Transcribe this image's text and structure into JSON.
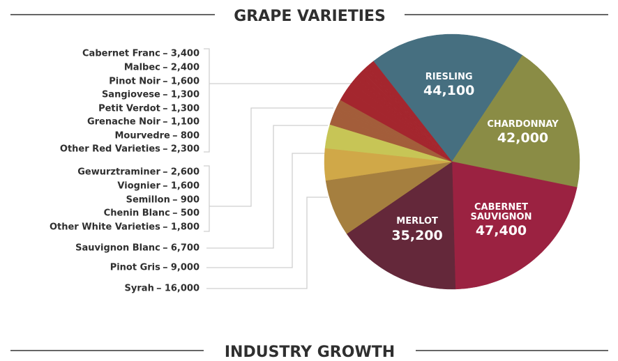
{
  "chart_data": {
    "type": "pie",
    "title": "GRAPE VARIETIES",
    "categories": [
      "RIESLING",
      "CHARDONNAY",
      "CABERNET SAUVIGNON",
      "MERLOT",
      "Syrah",
      "Pinot Gris",
      "Sauvignon Blanc",
      "Gewurztraminer",
      "Viognier",
      "Semillon",
      "Chenin Blanc",
      "Other White Varieties",
      "Cabernet Franc",
      "Malbec",
      "Pinot Noir",
      "Sangiovese",
      "Petit Verdot",
      "Grenache Noir",
      "Mourvedre",
      "Other Red Varieties"
    ],
    "values": [
      44100,
      42000,
      47400,
      35200,
      16000,
      9000,
      6700,
      2600,
      1600,
      900,
      500,
      1800,
      3400,
      2400,
      1600,
      1300,
      1300,
      1100,
      800,
      2300
    ],
    "value_labels": [
      "44,100",
      "42,000",
      "47,400",
      "35,200",
      "16,000",
      "9,000",
      "6,700",
      "2,600",
      "1,600",
      "900",
      "500",
      "1,800",
      "3,400",
      "2,400",
      "1,600",
      "1,300",
      "1,300",
      "1,100",
      "800",
      "2,300"
    ],
    "colors": [
      "#466f80",
      "#8a8c45",
      "#9b2241",
      "#64283a",
      "#a57f3f",
      "#d0a848",
      "#c7c556",
      "#a35d3a",
      "#a35d3a",
      "#a35d3a",
      "#a35d3a",
      "#a35d3a",
      "#a4262e",
      "#a4262e",
      "#a4262e",
      "#a4262e",
      "#a4262e",
      "#a4262e",
      "#a4262e",
      "#a4262e"
    ]
  },
  "next_section": {
    "title": "INDUSTRY GROWTH"
  }
}
